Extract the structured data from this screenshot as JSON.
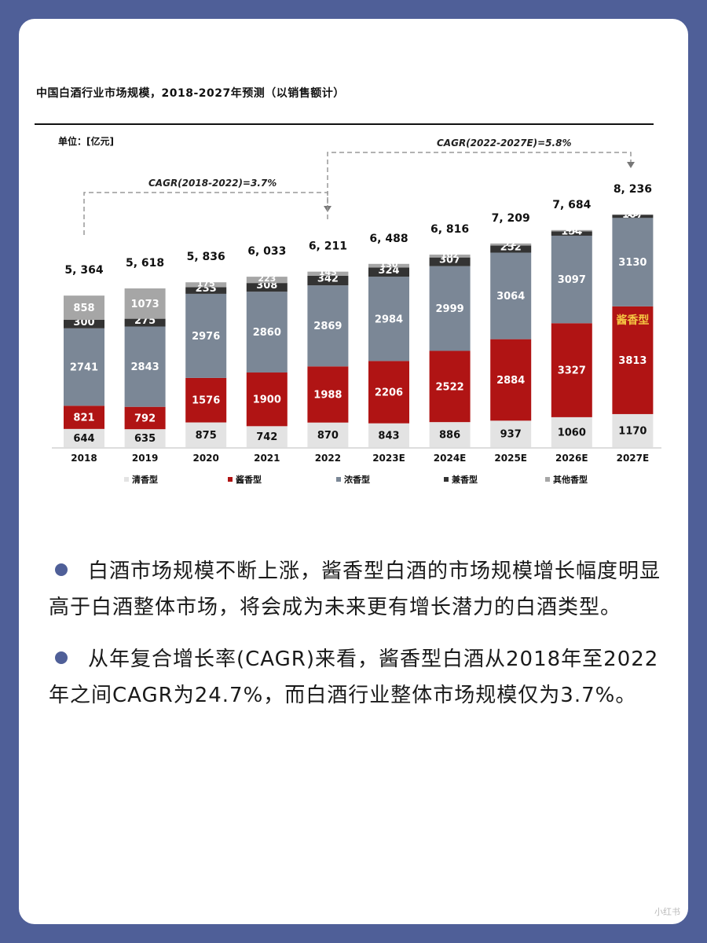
{
  "chart_title": "中国白酒行业市场规模，2018-2027年预测（以销售额计）",
  "unit_label": "单位：[亿元]",
  "cagr_1": "CAGR(2018-2022)=3.7%",
  "cagr_2": "CAGR(2022-2027E)=5.8%",
  "in_bar_label": "酱香型",
  "colors": {
    "qing": "#e3e3e3",
    "jiang": "#b01414",
    "nong": "#7b8796",
    "jian": "#333333",
    "other": "#a6a6a6"
  },
  "chart_data": {
    "type": "bar",
    "stacked": true,
    "categories": [
      "2018",
      "2019",
      "2020",
      "2021",
      "2022",
      "2023E",
      "2024E",
      "2025E",
      "2026E",
      "2027E"
    ],
    "totals": [
      "5, 364",
      "5, 618",
      "5, 836",
      "6, 033",
      "6, 211",
      "6, 488",
      "6, 816",
      "7, 209",
      "7, 684",
      "8, 236"
    ],
    "series": [
      {
        "name": "清香型",
        "values": [
          644,
          635,
          875,
          742,
          870,
          843,
          886,
          937,
          1060,
          1170
        ]
      },
      {
        "name": "酱香型",
        "values": [
          821,
          792,
          1576,
          1900,
          1988,
          2206,
          2522,
          2884,
          3327,
          3813
        ]
      },
      {
        "name": "浓香型",
        "values": [
          2741,
          2843,
          2976,
          2860,
          2869,
          2984,
          2999,
          3064,
          3097,
          3130
        ]
      },
      {
        "name": "兼香型",
        "values": [
          300,
          275,
          233,
          308,
          342,
          324,
          307,
          252,
          154,
          107
        ]
      },
      {
        "name": "其他香型",
        "values": [
          858,
          1073,
          175,
          223,
          143,
          130,
          102,
          72,
          46,
          16
        ]
      }
    ],
    "legend_position": "bottom"
  },
  "bullets": [
    "白酒市场规模不断上涨，酱香型白酒的市场规模增长幅度明显高于白酒整体市场，将会成为未来更有增长潜力的白酒类型。",
    "从年复合增长率(CAGR)来看，酱香型白酒从2018年至2022年之间CAGR为24.7%，而白酒行业整体市场规模仅为3.7%。"
  ],
  "watermark": "小红书"
}
